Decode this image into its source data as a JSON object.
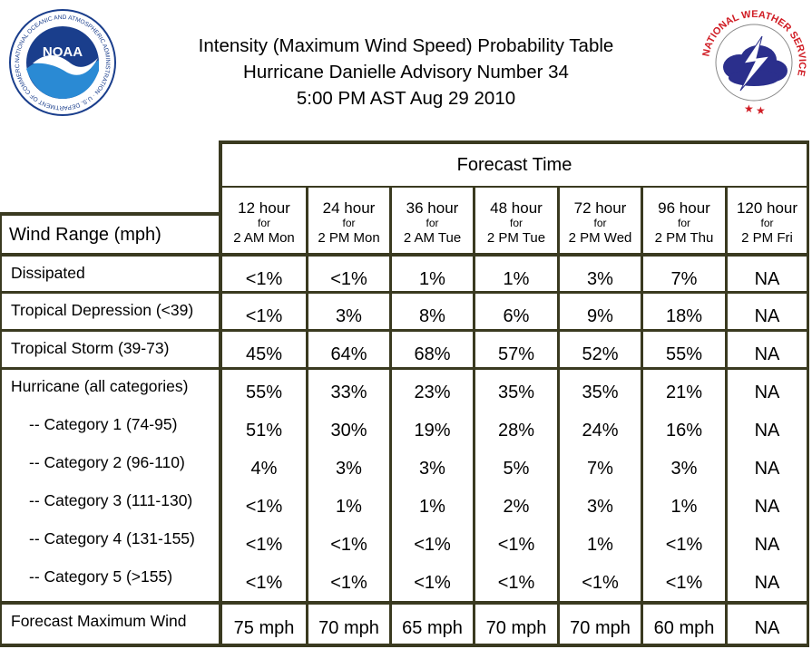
{
  "header": {
    "title_lines": [
      "Intensity (Maximum Wind Speed) Probability Table",
      "Hurricane Danielle Advisory Number 34",
      "5:00 PM AST Aug 29 2010"
    ],
    "left_logo": {
      "name": "noaa-logo",
      "center_text": "NOAA",
      "ring_text": "NATIONAL OCEANIC AND ATMOSPHERIC ADMINISTRATION · U.S. DEPARTMENT OF COMMERCE"
    },
    "right_logo": {
      "name": "nws-logo",
      "ring_text": "NATIONAL WEATHER SERVICE"
    }
  },
  "table": {
    "forecast_time_label": "Forecast Time",
    "row_header_label": "Wind Range (mph)",
    "columns": [
      {
        "hours": "12 hour",
        "for": "for",
        "valid": "2 AM Mon"
      },
      {
        "hours": "24 hour",
        "for": "for",
        "valid": "2 PM Mon"
      },
      {
        "hours": "36 hour",
        "for": "for",
        "valid": "2 AM Tue"
      },
      {
        "hours": "48 hour",
        "for": "for",
        "valid": "2 PM Tue"
      },
      {
        "hours": "72 hour",
        "for": "for",
        "valid": "2 PM Wed"
      },
      {
        "hours": "96 hour",
        "for": "for",
        "valid": "2 PM Thu"
      },
      {
        "hours": "120 hour",
        "for": "for",
        "valid": "2 PM Fri"
      }
    ],
    "rows": [
      {
        "label": "Dissipated",
        "values": [
          "<1%",
          "<1%",
          "1%",
          "1%",
          "3%",
          "7%",
          "NA"
        ]
      },
      {
        "label": "Tropical Depression (<39)",
        "values": [
          "<1%",
          "3%",
          "8%",
          "6%",
          "9%",
          "18%",
          "NA"
        ]
      },
      {
        "label": "Tropical Storm (39-73)",
        "values": [
          "45%",
          "64%",
          "68%",
          "57%",
          "52%",
          "55%",
          "NA"
        ]
      },
      {
        "label": "Hurricane (all categories)",
        "values": [
          "55%",
          "33%",
          "23%",
          "35%",
          "35%",
          "21%",
          "NA"
        ]
      },
      {
        "label": "-- Category 1 (74-95)",
        "values": [
          "51%",
          "30%",
          "19%",
          "28%",
          "24%",
          "16%",
          "NA"
        ],
        "indent": true
      },
      {
        "label": "-- Category 2 (96-110)",
        "values": [
          "4%",
          "3%",
          "3%",
          "5%",
          "7%",
          "3%",
          "NA"
        ],
        "indent": true
      },
      {
        "label": "-- Category 3 (111-130)",
        "values": [
          "<1%",
          "1%",
          "1%",
          "2%",
          "3%",
          "1%",
          "NA"
        ],
        "indent": true
      },
      {
        "label": "-- Category 4 (131-155)",
        "values": [
          "<1%",
          "<1%",
          "<1%",
          "<1%",
          "1%",
          "<1%",
          "NA"
        ],
        "indent": true
      },
      {
        "label": "-- Category 5 (>155)",
        "values": [
          "<1%",
          "<1%",
          "<1%",
          "<1%",
          "<1%",
          "<1%",
          "NA"
        ],
        "indent": true
      },
      {
        "label": "Forecast Maximum Wind",
        "values": [
          "75 mph",
          "70 mph",
          "65 mph",
          "70 mph",
          "70 mph",
          "60 mph",
          "NA"
        ]
      }
    ]
  },
  "colors": {
    "border": "#3a3a20",
    "noaa_blue": "#1a3e8c",
    "noaa_light": "#2a8ad4",
    "nws_red": "#d01c24",
    "nws_cloud": "#2b2f8c"
  }
}
